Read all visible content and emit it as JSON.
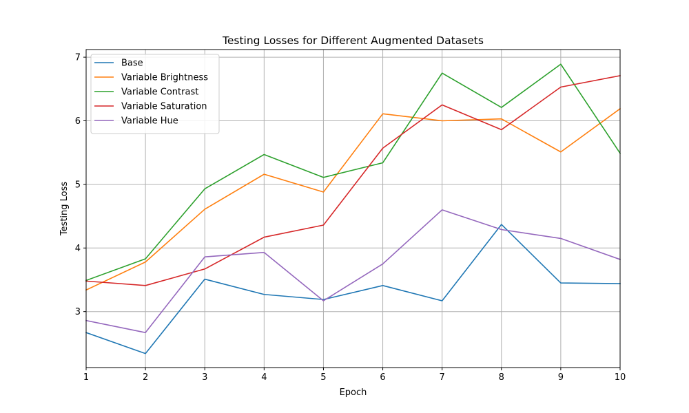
{
  "chart_data": {
    "type": "line",
    "title": "Testing Losses for Different Augmented Datasets",
    "xlabel": "Epoch",
    "ylabel": "Testing Loss",
    "x": [
      1,
      2,
      3,
      4,
      5,
      6,
      7,
      8,
      9,
      10
    ],
    "xticks": [
      "1",
      "2",
      "3",
      "4",
      "5",
      "6",
      "7",
      "8",
      "9",
      "10"
    ],
    "yticks": [
      "3",
      "4",
      "5",
      "6",
      "7"
    ],
    "xlim": [
      1,
      10
    ],
    "ylim": [
      2.12,
      7.12
    ],
    "grid": true,
    "legend_position": "top-left",
    "series": [
      {
        "name": "Base",
        "color": "#1f77b4",
        "values": [
          2.67,
          2.34,
          3.51,
          3.27,
          3.19,
          3.41,
          3.17,
          4.37,
          3.45,
          3.44
        ]
      },
      {
        "name": "Variable Brightness",
        "color": "#ff7f0e",
        "values": [
          3.34,
          3.78,
          4.61,
          5.16,
          4.88,
          6.11,
          6.0,
          6.03,
          5.51,
          6.19
        ]
      },
      {
        "name": "Variable Contrast",
        "color": "#2ca02c",
        "values": [
          3.49,
          3.83,
          4.93,
          5.47,
          5.11,
          5.34,
          6.75,
          6.21,
          6.89,
          5.49
        ]
      },
      {
        "name": "Variable Saturation",
        "color": "#d62728",
        "values": [
          3.48,
          3.41,
          3.67,
          4.17,
          4.36,
          5.57,
          6.25,
          5.86,
          6.53,
          6.71
        ]
      },
      {
        "name": "Variable Hue",
        "color": "#9467bd",
        "values": [
          2.86,
          2.67,
          3.86,
          3.93,
          3.17,
          3.75,
          4.6,
          4.29,
          4.15,
          3.82
        ]
      }
    ]
  }
}
